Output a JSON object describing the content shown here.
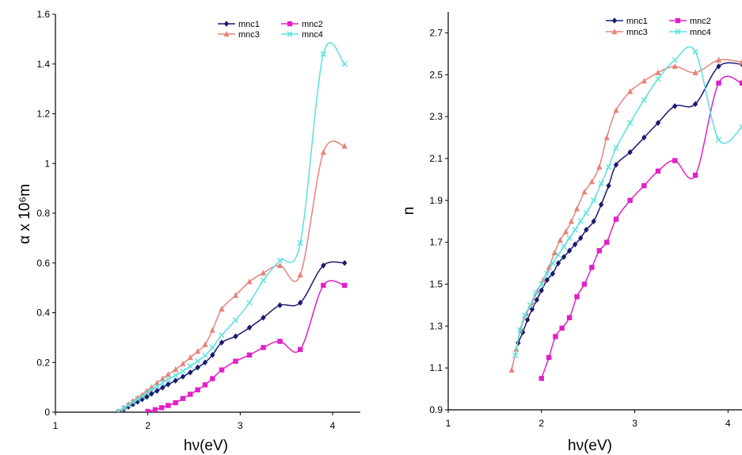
{
  "chart_data": [
    {
      "type": "line",
      "xlabel": "hν(eV)",
      "ylabel": "α x 10⁶m",
      "xlim": [
        1,
        4.3
      ],
      "ylim": [
        0,
        1.6
      ],
      "x_ticks": [
        "1",
        "2",
        "3",
        "4"
      ],
      "y_ticks": [
        "0",
        "0.2",
        "0.4",
        "0.6",
        "0.8",
        "1",
        "1.2",
        "1.4",
        "1.6"
      ],
      "legend": "top-right",
      "series": [
        {
          "name": "mnc1",
          "color": "#1a1a6e",
          "marker": "diamond",
          "x": [
            1.68,
            1.74,
            1.79,
            1.84,
            1.89,
            1.94,
            1.99,
            2.04,
            2.1,
            2.16,
            2.22,
            2.3,
            2.38,
            2.46,
            2.54,
            2.62,
            2.7,
            2.8,
            2.95,
            3.1,
            3.25,
            3.43,
            3.65,
            3.9,
            4.13
          ],
          "y": [
            0.002,
            0.012,
            0.022,
            0.032,
            0.042,
            0.052,
            0.062,
            0.074,
            0.086,
            0.099,
            0.112,
            0.127,
            0.143,
            0.16,
            0.18,
            0.2,
            0.23,
            0.28,
            0.305,
            0.34,
            0.38,
            0.43,
            0.44,
            0.59,
            0.6
          ]
        },
        {
          "name": "mnc2",
          "color": "#e020c8",
          "marker": "square",
          "x": [
            2.0,
            2.08,
            2.15,
            2.22,
            2.3,
            2.38,
            2.46,
            2.54,
            2.62,
            2.7,
            2.8,
            2.95,
            3.1,
            3.25,
            3.43,
            3.65,
            3.9,
            4.13
          ],
          "y": [
            0.003,
            0.01,
            0.018,
            0.027,
            0.038,
            0.055,
            0.072,
            0.09,
            0.11,
            0.135,
            0.17,
            0.205,
            0.23,
            0.26,
            0.285,
            0.252,
            0.51,
            0.51
          ]
        },
        {
          "name": "mnc3",
          "color": "#e8837a",
          "marker": "triangle",
          "x": [
            1.68,
            1.74,
            1.79,
            1.84,
            1.89,
            1.94,
            1.99,
            2.04,
            2.1,
            2.16,
            2.22,
            2.3,
            2.38,
            2.46,
            2.54,
            2.62,
            2.7,
            2.8,
            2.95,
            3.1,
            3.25,
            3.43,
            3.65,
            3.9,
            4.13
          ],
          "y": [
            0.003,
            0.018,
            0.032,
            0.045,
            0.058,
            0.07,
            0.085,
            0.1,
            0.118,
            0.135,
            0.152,
            0.172,
            0.195,
            0.22,
            0.245,
            0.272,
            0.33,
            0.415,
            0.47,
            0.525,
            0.56,
            0.59,
            0.552,
            1.045,
            1.07
          ]
        },
        {
          "name": "mnc4",
          "color": "#5ae0e0",
          "marker": "x",
          "x": [
            1.68,
            1.74,
            1.79,
            1.84,
            1.89,
            1.94,
            1.99,
            2.04,
            2.1,
            2.16,
            2.22,
            2.3,
            2.38,
            2.46,
            2.54,
            2.62,
            2.7,
            2.8,
            2.95,
            3.1,
            3.25,
            3.43,
            3.65,
            3.9,
            4.13
          ],
          "y": [
            0.003,
            0.016,
            0.028,
            0.04,
            0.052,
            0.063,
            0.076,
            0.09,
            0.104,
            0.118,
            0.132,
            0.148,
            0.165,
            0.185,
            0.205,
            0.228,
            0.26,
            0.31,
            0.37,
            0.44,
            0.53,
            0.61,
            0.68,
            1.44,
            1.4
          ]
        }
      ]
    },
    {
      "type": "line",
      "xlabel": "hν(eV)",
      "ylabel": "n",
      "xlim": [
        1,
        4.15
      ],
      "ylim": [
        0.9,
        2.8
      ],
      "x_ticks": [
        "1",
        "2",
        "3",
        "4"
      ],
      "y_ticks": [
        "0.9",
        "1.1",
        "1.3",
        "1.5",
        "1.7",
        "1.9",
        "2.1",
        "2.3",
        "2.5",
        "2.7"
      ],
      "legend": "top-right",
      "series": [
        {
          "name": "mnc1",
          "color": "#1a1a6e",
          "marker": "diamond",
          "x": [
            1.75,
            1.8,
            1.85,
            1.9,
            1.95,
            2.0,
            2.06,
            2.12,
            2.18,
            2.24,
            2.3,
            2.36,
            2.42,
            2.48,
            2.56,
            2.64,
            2.72,
            2.8,
            2.95,
            3.1,
            3.25,
            3.43,
            3.65,
            3.9,
            4.15
          ],
          "y": [
            1.22,
            1.27,
            1.33,
            1.38,
            1.425,
            1.47,
            1.52,
            1.55,
            1.6,
            1.63,
            1.66,
            1.69,
            1.72,
            1.76,
            1.8,
            1.88,
            1.97,
            2.07,
            2.13,
            2.2,
            2.27,
            2.35,
            2.36,
            2.54,
            2.55
          ]
        },
        {
          "name": "mnc2",
          "color": "#e020c8",
          "marker": "square",
          "x": [
            2.0,
            2.08,
            2.15,
            2.22,
            2.3,
            2.38,
            2.46,
            2.54,
            2.62,
            2.7,
            2.8,
            2.95,
            3.1,
            3.25,
            3.43,
            3.65,
            3.9,
            4.15
          ],
          "y": [
            1.05,
            1.15,
            1.25,
            1.29,
            1.34,
            1.44,
            1.5,
            1.58,
            1.66,
            1.7,
            1.81,
            1.9,
            1.97,
            2.04,
            2.09,
            2.02,
            2.46,
            2.46
          ]
        },
        {
          "name": "mnc3",
          "color": "#e8837a",
          "marker": "triangle",
          "x": [
            1.68,
            1.73,
            1.78,
            1.84,
            1.9,
            1.96,
            2.02,
            2.08,
            2.14,
            2.2,
            2.26,
            2.32,
            2.38,
            2.46,
            2.54,
            2.62,
            2.7,
            2.8,
            2.95,
            3.1,
            3.25,
            3.43,
            3.65,
            3.9,
            4.15
          ],
          "y": [
            1.09,
            1.19,
            1.29,
            1.36,
            1.41,
            1.47,
            1.52,
            1.58,
            1.65,
            1.71,
            1.75,
            1.8,
            1.86,
            1.94,
            1.99,
            2.06,
            2.2,
            2.33,
            2.42,
            2.47,
            2.51,
            2.54,
            2.51,
            2.57,
            2.56
          ]
        },
        {
          "name": "mnc4",
          "color": "#5ae0e0",
          "marker": "x",
          "x": [
            1.72,
            1.77,
            1.82,
            1.88,
            1.94,
            2.0,
            2.06,
            2.12,
            2.18,
            2.24,
            2.3,
            2.36,
            2.42,
            2.48,
            2.56,
            2.64,
            2.72,
            2.8,
            2.95,
            3.1,
            3.25,
            3.43,
            3.65,
            3.9,
            4.15
          ],
          "y": [
            1.16,
            1.28,
            1.35,
            1.4,
            1.46,
            1.5,
            1.55,
            1.6,
            1.64,
            1.68,
            1.72,
            1.76,
            1.8,
            1.84,
            1.9,
            1.98,
            2.06,
            2.15,
            2.27,
            2.38,
            2.48,
            2.57,
            2.61,
            2.19,
            2.25
          ]
        }
      ]
    }
  ]
}
